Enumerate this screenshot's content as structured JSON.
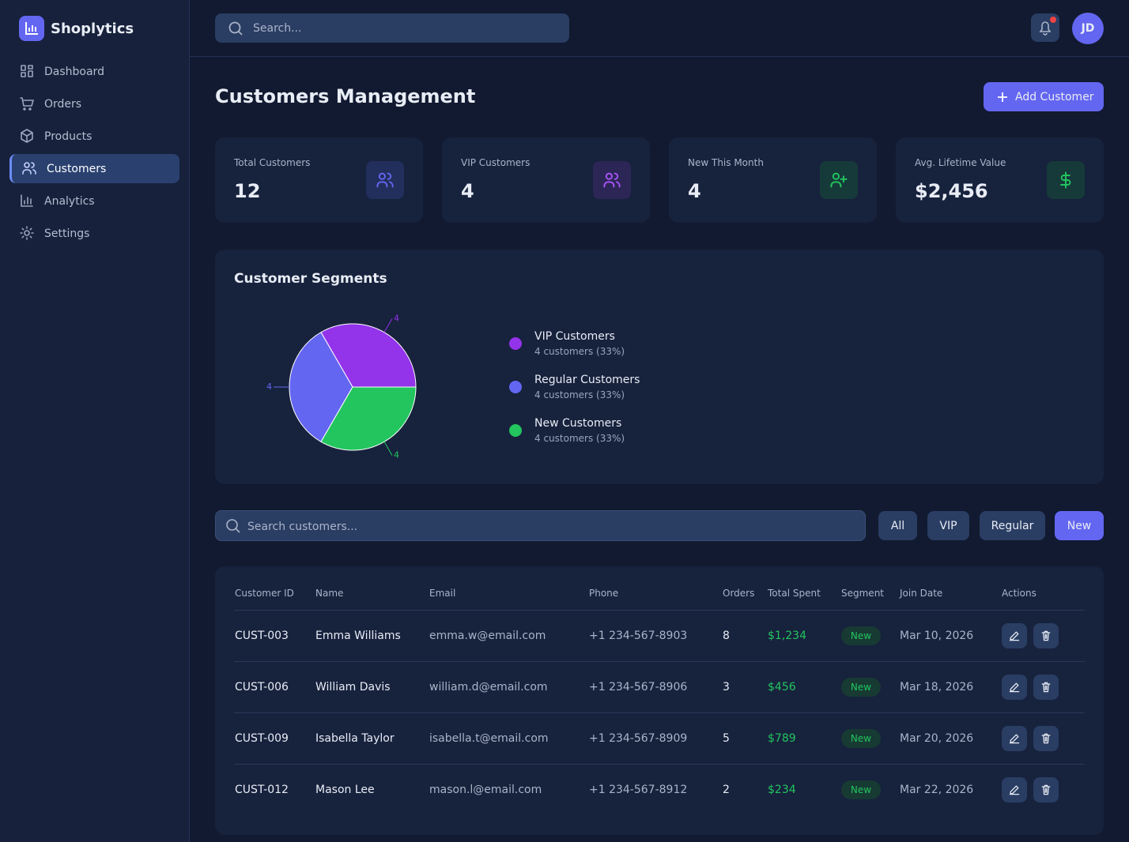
{
  "sidebar": {
    "brand": "Shoplytics",
    "nav": [
      "Dashboard",
      "Orders",
      "Products",
      "Customers",
      "Analytics",
      "Settings"
    ],
    "active": 3
  },
  "topbar": {
    "search_placeholder": "Search...",
    "avatar": "JD"
  },
  "header": {
    "title": "Customers Management",
    "button": "Add Customer"
  },
  "stats": [
    {
      "label": "Total Customers",
      "value": "12"
    },
    {
      "label": "VIP Customers",
      "value": "4"
    },
    {
      "label": "New This Month",
      "value": "4"
    },
    {
      "label": "Avg. Lifetime Value",
      "value": "$2,456"
    }
  ],
  "chart_data": {
    "type": "pie",
    "title": "Customer Segments",
    "categories": [
      "VIP Customers",
      "Regular Customers",
      "New Customers"
    ],
    "values": [
      4,
      4,
      4
    ],
    "colors": [
      "#9333ea",
      "#6366f1",
      "#22c55e"
    ],
    "legend_details": [
      "4 customers (33%)",
      "4 customers (33%)",
      "4 customers (33%)"
    ]
  },
  "filters": {
    "search_placeholder": "Search customers...",
    "buttons": [
      "All",
      "VIP",
      "Regular",
      "New"
    ],
    "active": 3
  },
  "table": {
    "columns": [
      "Customer ID",
      "Name",
      "Email",
      "Phone",
      "Orders",
      "Total Spent",
      "Segment",
      "Join Date",
      "Actions"
    ],
    "rows": [
      [
        "CUST-003",
        "Emma Williams",
        "emma.w@email.com",
        "+1 234-567-8903",
        "8",
        "$1,234",
        "New",
        "Mar 10, 2026"
      ],
      [
        "CUST-006",
        "William Davis",
        "william.d@email.com",
        "+1 234-567-8906",
        "3",
        "$456",
        "New",
        "Mar 18, 2026"
      ],
      [
        "CUST-009",
        "Isabella Taylor",
        "isabella.t@email.com",
        "+1 234-567-8909",
        "5",
        "$789",
        "New",
        "Mar 20, 2026"
      ],
      [
        "CUST-012",
        "Mason Lee",
        "mason.l@email.com",
        "+1 234-567-8912",
        "2",
        "$234",
        "New",
        "Mar 22, 2026"
      ]
    ]
  }
}
